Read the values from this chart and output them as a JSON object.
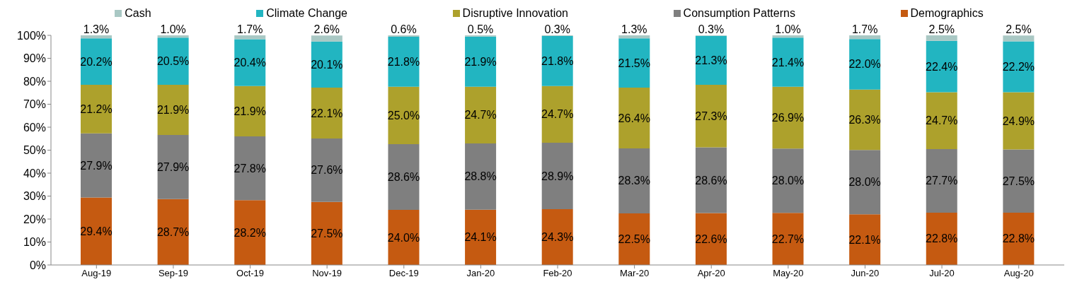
{
  "chart_data": {
    "type": "bar",
    "stacked": true,
    "legend": "top",
    "categories": [
      "Aug-19",
      "Sep-19",
      "Oct-19",
      "Nov-19",
      "Dec-19",
      "Jan-20",
      "Feb-20",
      "Mar-20",
      "Apr-20",
      "May-20",
      "Jun-20",
      "Jul-20",
      "Aug-20"
    ],
    "ylim": [
      0,
      100
    ],
    "yticks": [
      {
        "value": 0,
        "label": "0%"
      },
      {
        "value": 10,
        "label": "10%"
      },
      {
        "value": 20,
        "label": "20%"
      },
      {
        "value": 30,
        "label": "30%"
      },
      {
        "value": 40,
        "label": "40%"
      },
      {
        "value": 50,
        "label": "50%"
      },
      {
        "value": 60,
        "label": "60%"
      },
      {
        "value": 70,
        "label": "70%"
      },
      {
        "value": 80,
        "label": "80%"
      },
      {
        "value": 90,
        "label": "90%"
      },
      {
        "value": 100,
        "label": "100%"
      }
    ],
    "series": [
      {
        "name": "Demographics",
        "color": "#c55a11",
        "values": [
          29.4,
          28.7,
          28.2,
          27.5,
          24.0,
          24.1,
          24.3,
          22.5,
          22.6,
          22.7,
          22.1,
          22.8,
          22.8
        ],
        "value_labels": [
          "29.4%",
          "28.7%",
          "28.2%",
          "27.5%",
          "24.0%",
          "24.1%",
          "24.3%",
          "22.5%",
          "22.6%",
          "22.7%",
          "22.1%",
          "22.8%",
          "22.8%"
        ]
      },
      {
        "name": "Consumption Patterns",
        "color": "#7f7f7f",
        "values": [
          27.9,
          27.9,
          27.8,
          27.6,
          28.6,
          28.8,
          28.9,
          28.3,
          28.6,
          28.0,
          28.0,
          27.7,
          27.5
        ],
        "value_labels": [
          "27.9%",
          "27.9%",
          "27.8%",
          "27.6%",
          "28.6%",
          "28.8%",
          "28.9%",
          "28.3%",
          "28.6%",
          "28.0%",
          "28.0%",
          "27.7%",
          "27.5%"
        ]
      },
      {
        "name": "Disruptive Innovation",
        "color": "#ada12c",
        "values": [
          21.2,
          21.9,
          21.9,
          22.1,
          25.0,
          24.7,
          24.7,
          26.4,
          27.3,
          26.9,
          26.3,
          24.7,
          24.9
        ],
        "value_labels": [
          "21.2%",
          "21.9%",
          "21.9%",
          "22.1%",
          "25.0%",
          "24.7%",
          "24.7%",
          "26.4%",
          "27.3%",
          "26.9%",
          "26.3%",
          "24.7%",
          "24.9%"
        ]
      },
      {
        "name": "Climate Change",
        "color": "#22b5c1",
        "values": [
          20.2,
          20.5,
          20.4,
          20.1,
          21.8,
          21.9,
          21.8,
          21.5,
          21.3,
          21.4,
          22.0,
          22.4,
          22.2
        ],
        "value_labels": [
          "20.2%",
          "20.5%",
          "20.4%",
          "20.1%",
          "21.8%",
          "21.9%",
          "21.8%",
          "21.5%",
          "21.3%",
          "21.4%",
          "22.0%",
          "22.4%",
          "22.2%"
        ]
      },
      {
        "name": "Cash",
        "color": "#a9c8c4",
        "values": [
          1.3,
          1.0,
          1.7,
          2.6,
          0.6,
          0.5,
          0.3,
          1.3,
          0.3,
          1.0,
          1.7,
          2.5,
          2.5
        ],
        "value_labels": [
          "1.3%",
          "1.0%",
          "1.7%",
          "2.6%",
          "0.6%",
          "0.5%",
          "0.3%",
          "1.3%",
          "0.3%",
          "1.0%",
          "1.7%",
          "2.5%",
          "2.5%"
        ]
      }
    ]
  }
}
